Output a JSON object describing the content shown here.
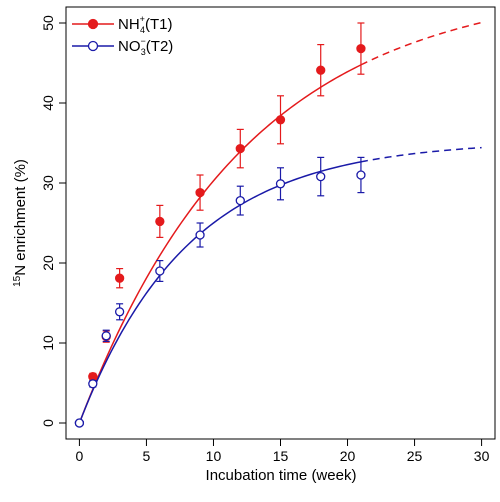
{
  "chart_data": {
    "type": "scatter",
    "xlabel": "Incubation time (week)",
    "ylabel": {
      "sup": "15",
      "main": "N enrichment (%)"
    },
    "xlim": [
      -1,
      31
    ],
    "ylim": [
      -2,
      52
    ],
    "xticks": [
      0,
      5,
      10,
      15,
      20,
      25,
      30
    ],
    "yticks": [
      0,
      10,
      20,
      30,
      40,
      50
    ],
    "grid": false,
    "legend_position": "top-left",
    "series": [
      {
        "id": "t1",
        "legend": {
          "base": "NH",
          "sub": "4",
          "sup": "+",
          "suffix": "(T1)"
        },
        "color": "#e41a1c",
        "marker": "filled-circle",
        "x": [
          0,
          1,
          2,
          3,
          6,
          9,
          12,
          15,
          18,
          21
        ],
        "y": [
          0,
          5.8,
          10.8,
          18.1,
          25.2,
          28.8,
          34.3,
          37.9,
          44.1,
          46.8
        ],
        "err": [
          0,
          0.4,
          0.7,
          1.2,
          2.0,
          2.2,
          2.4,
          3.0,
          3.2,
          3.2
        ],
        "fit": {
          "asymptote": 55.1,
          "rate": 0.0797,
          "solid_until": 21,
          "dashed_until": 30
        }
      },
      {
        "id": "t2",
        "legend": {
          "base": "NO",
          "sub": "3",
          "sup": "−",
          "suffix": "(T2)"
        },
        "color": "#1a1aa8",
        "marker": "open-circle",
        "x": [
          0,
          1,
          2,
          3,
          6,
          9,
          12,
          15,
          18,
          21
        ],
        "y": [
          0,
          4.9,
          10.9,
          13.9,
          19.0,
          23.5,
          27.8,
          29.9,
          30.8,
          31.0
        ],
        "err": [
          0,
          0.4,
          0.7,
          1.0,
          1.3,
          1.5,
          1.8,
          2.0,
          2.4,
          2.2
        ],
        "fit": {
          "asymptote": 35.3,
          "rate": 0.1232,
          "solid_until": 21,
          "dashed_until": 30
        }
      }
    ]
  }
}
